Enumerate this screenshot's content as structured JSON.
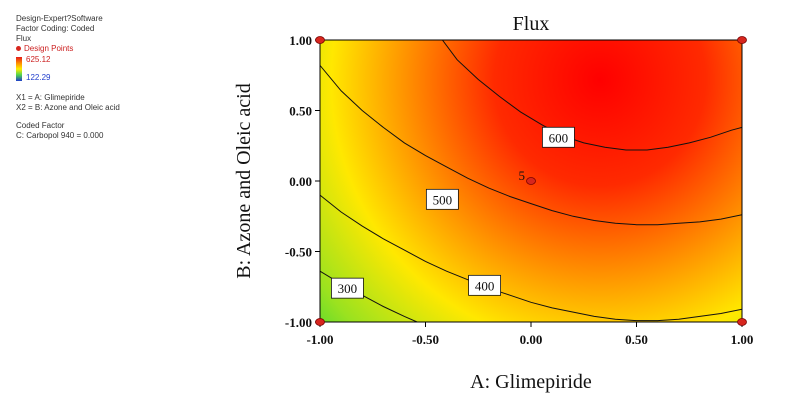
{
  "side_panel": {
    "software": "Design-Expert?Software",
    "coding": "Factor Coding: Coded",
    "response": "Flux",
    "design_points_label": "Design Points",
    "legend_max": "625.12",
    "legend_min": "122.29",
    "x1": "X1 = A: Glimepiride",
    "x2": "X2 = B: Azone and Oleic acid",
    "coded_factor_title": "Coded Factor",
    "coded_factor_value": "C: Carbopol 940 = 0.000"
  },
  "colors": {
    "high": "#e31a1c",
    "mid_high": "#ff8c00",
    "mid": "#ffee00",
    "mid_low": "#4ed34e",
    "low": "#1f3dcc",
    "design_point": "#d7261e"
  },
  "chart_data": {
    "type": "contour",
    "title": "Flux",
    "xlabel": "A: Glimepiride",
    "ylabel": "B: Azone and Oleic acid",
    "xlim": [
      -1.0,
      1.0
    ],
    "ylim": [
      -1.0,
      1.0
    ],
    "x_ticks": [
      "-1.00",
      "-0.50",
      "0.00",
      "0.50",
      "1.00"
    ],
    "y_ticks": [
      "-1.00",
      "-0.50",
      "0.00",
      "0.50",
      "1.00"
    ],
    "response_range": [
      122.29,
      625.12
    ],
    "contours": [
      {
        "level": "300",
        "points": [
          [
            -1.0,
            -0.64
          ],
          [
            -0.9,
            -0.73
          ],
          [
            -0.8,
            -0.81
          ],
          [
            -0.7,
            -0.89
          ],
          [
            -0.6,
            -0.96
          ],
          [
            -0.54,
            -1.0
          ]
        ]
      },
      {
        "level": "400",
        "points": [
          [
            -1.0,
            -0.1
          ],
          [
            -0.9,
            -0.22
          ],
          [
            -0.8,
            -0.32
          ],
          [
            -0.7,
            -0.41
          ],
          [
            -0.6,
            -0.49
          ],
          [
            -0.5,
            -0.57
          ],
          [
            -0.4,
            -0.64
          ],
          [
            -0.3,
            -0.7
          ],
          [
            -0.2,
            -0.76
          ],
          [
            -0.1,
            -0.81
          ],
          [
            0.0,
            -0.86
          ],
          [
            0.1,
            -0.9
          ],
          [
            0.2,
            -0.93
          ],
          [
            0.3,
            -0.96
          ],
          [
            0.4,
            -0.98
          ],
          [
            0.5,
            -0.99
          ],
          [
            0.6,
            -0.99
          ],
          [
            0.7,
            -0.98
          ],
          [
            0.8,
            -0.96
          ],
          [
            0.9,
            -0.94
          ],
          [
            1.0,
            -0.91
          ]
        ]
      },
      {
        "level": "500",
        "points": [
          [
            -1.0,
            0.82
          ],
          [
            -0.9,
            0.64
          ],
          [
            -0.8,
            0.5
          ],
          [
            -0.7,
            0.38
          ],
          [
            -0.6,
            0.27
          ],
          [
            -0.5,
            0.18
          ],
          [
            -0.4,
            0.1
          ],
          [
            -0.3,
            0.02
          ],
          [
            -0.2,
            -0.05
          ],
          [
            -0.1,
            -0.11
          ],
          [
            0.0,
            -0.16
          ],
          [
            0.1,
            -0.21
          ],
          [
            0.2,
            -0.25
          ],
          [
            0.3,
            -0.28
          ],
          [
            0.4,
            -0.3
          ],
          [
            0.5,
            -0.31
          ],
          [
            0.6,
            -0.31
          ],
          [
            0.7,
            -0.3
          ],
          [
            0.8,
            -0.29
          ],
          [
            0.9,
            -0.27
          ],
          [
            1.0,
            -0.24
          ]
        ]
      },
      {
        "level": "600",
        "points": [
          [
            -0.42,
            1.0
          ],
          [
            -0.35,
            0.86
          ],
          [
            -0.25,
            0.72
          ],
          [
            -0.15,
            0.6
          ],
          [
            -0.05,
            0.49
          ],
          [
            0.05,
            0.4
          ],
          [
            0.15,
            0.32
          ],
          [
            0.25,
            0.27
          ],
          [
            0.35,
            0.24
          ],
          [
            0.45,
            0.22
          ],
          [
            0.55,
            0.22
          ],
          [
            0.65,
            0.24
          ],
          [
            0.75,
            0.27
          ],
          [
            0.85,
            0.31
          ],
          [
            0.95,
            0.36
          ],
          [
            1.0,
            0.38
          ]
        ]
      }
    ],
    "contour_labels": [
      {
        "text": "600",
        "x": 0.13,
        "y": 0.31
      },
      {
        "text": "500",
        "x": -0.42,
        "y": -0.13
      },
      {
        "text": "400",
        "x": -0.22,
        "y": -0.74
      },
      {
        "text": "300",
        "x": -0.87,
        "y": -0.76
      }
    ],
    "design_points": [
      {
        "x": -1.0,
        "y": 1.0
      },
      {
        "x": 1.0,
        "y": 1.0
      },
      {
        "x": -1.0,
        "y": -1.0
      },
      {
        "x": 1.0,
        "y": -1.0
      },
      {
        "x": 0.0,
        "y": 0.0,
        "label": "5"
      }
    ]
  }
}
